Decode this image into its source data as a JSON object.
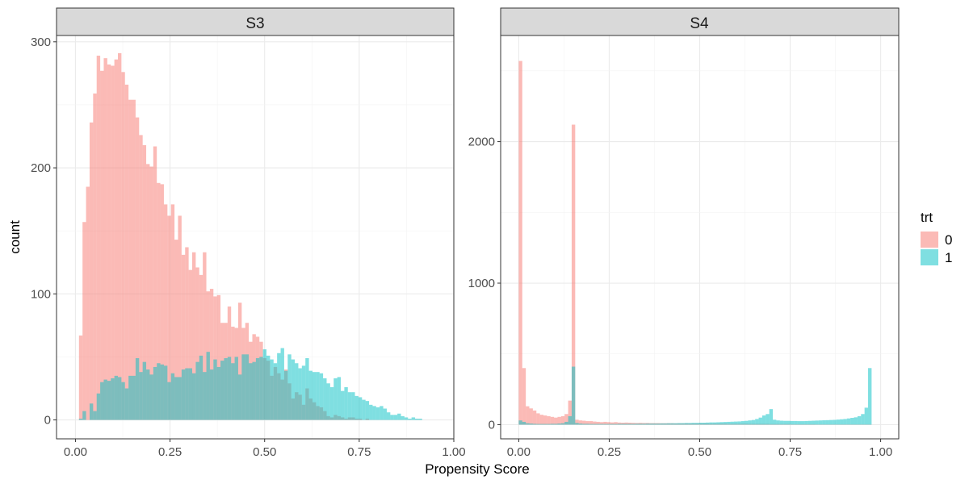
{
  "chart_data": [
    {
      "type": "histogram",
      "facet_title": "S3",
      "xlabel": "Propensity Score",
      "ylabel": "count",
      "xlim": [
        -0.05,
        1.0
      ],
      "ylim": [
        -15,
        305
      ],
      "x_ticks": [
        0.0,
        0.25,
        0.5,
        0.75,
        1.0
      ],
      "x_tick_labels": [
        "0.00",
        "0.25",
        "0.50",
        "0.75",
        "1.00"
      ],
      "y_ticks": [
        0,
        100,
        200,
        300
      ],
      "y_tick_labels": [
        "0",
        "100",
        "200",
        "300"
      ],
      "bin_width": 0.00935,
      "bin_start": 0.0,
      "grid": true,
      "series": [
        {
          "name": "0",
          "values": [
            0,
            67,
            157,
            185,
            236,
            259,
            289,
            277,
            287,
            282,
            281,
            286,
            291,
            276,
            266,
            254,
            254,
            240,
            226,
            218,
            203,
            201,
            217,
            188,
            187,
            171,
            162,
            171,
            143,
            162,
            131,
            137,
            119,
            133,
            121,
            115,
            133,
            102,
            104,
            98,
            99,
            77,
            77,
            90,
            74,
            73,
            93,
            73,
            77,
            62,
            68,
            66,
            62,
            49,
            47,
            35,
            42,
            37,
            32,
            40,
            29,
            17,
            22,
            20,
            12,
            25,
            17,
            14,
            11,
            10,
            7,
            3,
            2,
            4,
            3,
            2,
            1,
            2,
            2,
            1,
            1,
            0,
            1,
            0,
            0,
            0,
            0,
            0,
            0,
            0,
            0,
            0,
            0,
            0,
            0,
            0,
            0,
            0,
            0,
            0,
            0
          ]
        },
        {
          "name": "1",
          "values": [
            0,
            1,
            7,
            0,
            13,
            7,
            21,
            30,
            32,
            31,
            33,
            35,
            34,
            30,
            25,
            35,
            35,
            49,
            38,
            46,
            40,
            36,
            42,
            45,
            44,
            43,
            30,
            37,
            34,
            34,
            40,
            41,
            41,
            37,
            46,
            51,
            38,
            54,
            40,
            48,
            42,
            47,
            49,
            50,
            45,
            50,
            36,
            52,
            52,
            45,
            46,
            49,
            50,
            56,
            51,
            48,
            45,
            53,
            57,
            39,
            52,
            48,
            45,
            41,
            43,
            49,
            39,
            38,
            38,
            37,
            33,
            29,
            26,
            33,
            34,
            23,
            26,
            22,
            22,
            19,
            18,
            16,
            15,
            12,
            11,
            10,
            11,
            9,
            6,
            4,
            4,
            5,
            3,
            2,
            1,
            2,
            1,
            1,
            0,
            0,
            0
          ]
        }
      ]
    },
    {
      "type": "histogram",
      "facet_title": "S4",
      "xlabel": "Propensity Score",
      "ylabel": "count",
      "xlim": [
        -0.05,
        1.05
      ],
      "ylim": [
        -100,
        2750
      ],
      "x_ticks": [
        0.0,
        0.25,
        0.5,
        0.75,
        1.0
      ],
      "x_tick_labels": [
        "0.00",
        "0.25",
        "0.50",
        "0.75",
        "1.00"
      ],
      "y_ticks": [
        0,
        1000,
        2000
      ],
      "y_tick_labels": [
        "0",
        "1000",
        "2000"
      ],
      "bin_width": 0.00975,
      "bin_start": 0.0,
      "grid": true,
      "series": [
        {
          "name": "0",
          "values": [
            2570,
            400,
            130,
            115,
            100,
            80,
            70,
            65,
            60,
            55,
            50,
            55,
            60,
            75,
            170,
            2120,
            35,
            30,
            28,
            25,
            25,
            22,
            20,
            18,
            20,
            18,
            16,
            18,
            15,
            14,
            15,
            14,
            13,
            12,
            13,
            12,
            12,
            11,
            11,
            11,
            10,
            10,
            10,
            10,
            9,
            9,
            9,
            9,
            8,
            8,
            8,
            8,
            8,
            8,
            7,
            7,
            7,
            7,
            7,
            6,
            6,
            6,
            6,
            6,
            6,
            5,
            5,
            5,
            5,
            5,
            5,
            4,
            4,
            4,
            4,
            4,
            4,
            3,
            3,
            3,
            3,
            3,
            3,
            3,
            2,
            2,
            2,
            2,
            2,
            2,
            2,
            2,
            2,
            2,
            2,
            2,
            2,
            2,
            2,
            2
          ]
        },
        {
          "name": "1",
          "values": [
            30,
            20,
            10,
            8,
            6,
            5,
            5,
            5,
            5,
            6,
            6,
            8,
            10,
            20,
            60,
            410,
            12,
            8,
            6,
            6,
            5,
            5,
            5,
            5,
            5,
            5,
            5,
            5,
            6,
            6,
            6,
            6,
            6,
            7,
            7,
            7,
            8,
            8,
            8,
            8,
            9,
            9,
            10,
            10,
            10,
            11,
            11,
            12,
            12,
            13,
            13,
            14,
            14,
            15,
            16,
            16,
            17,
            18,
            19,
            20,
            21,
            22,
            23,
            25,
            27,
            30,
            33,
            40,
            50,
            65,
            75,
            110,
            35,
            30,
            28,
            27,
            27,
            26,
            26,
            25,
            25,
            26,
            27,
            28,
            29,
            30,
            31,
            32,
            33,
            34,
            36,
            38,
            40,
            44,
            48,
            52,
            60,
            75,
            120,
            400
          ]
        }
      ]
    }
  ],
  "legend": {
    "title": "trt",
    "items": [
      {
        "label": "0",
        "color": "#F8766D"
      },
      {
        "label": "1",
        "color": "#00BFC4"
      }
    ]
  },
  "shared_xlabel": "Propensity Score",
  "shared_ylabel": "count"
}
